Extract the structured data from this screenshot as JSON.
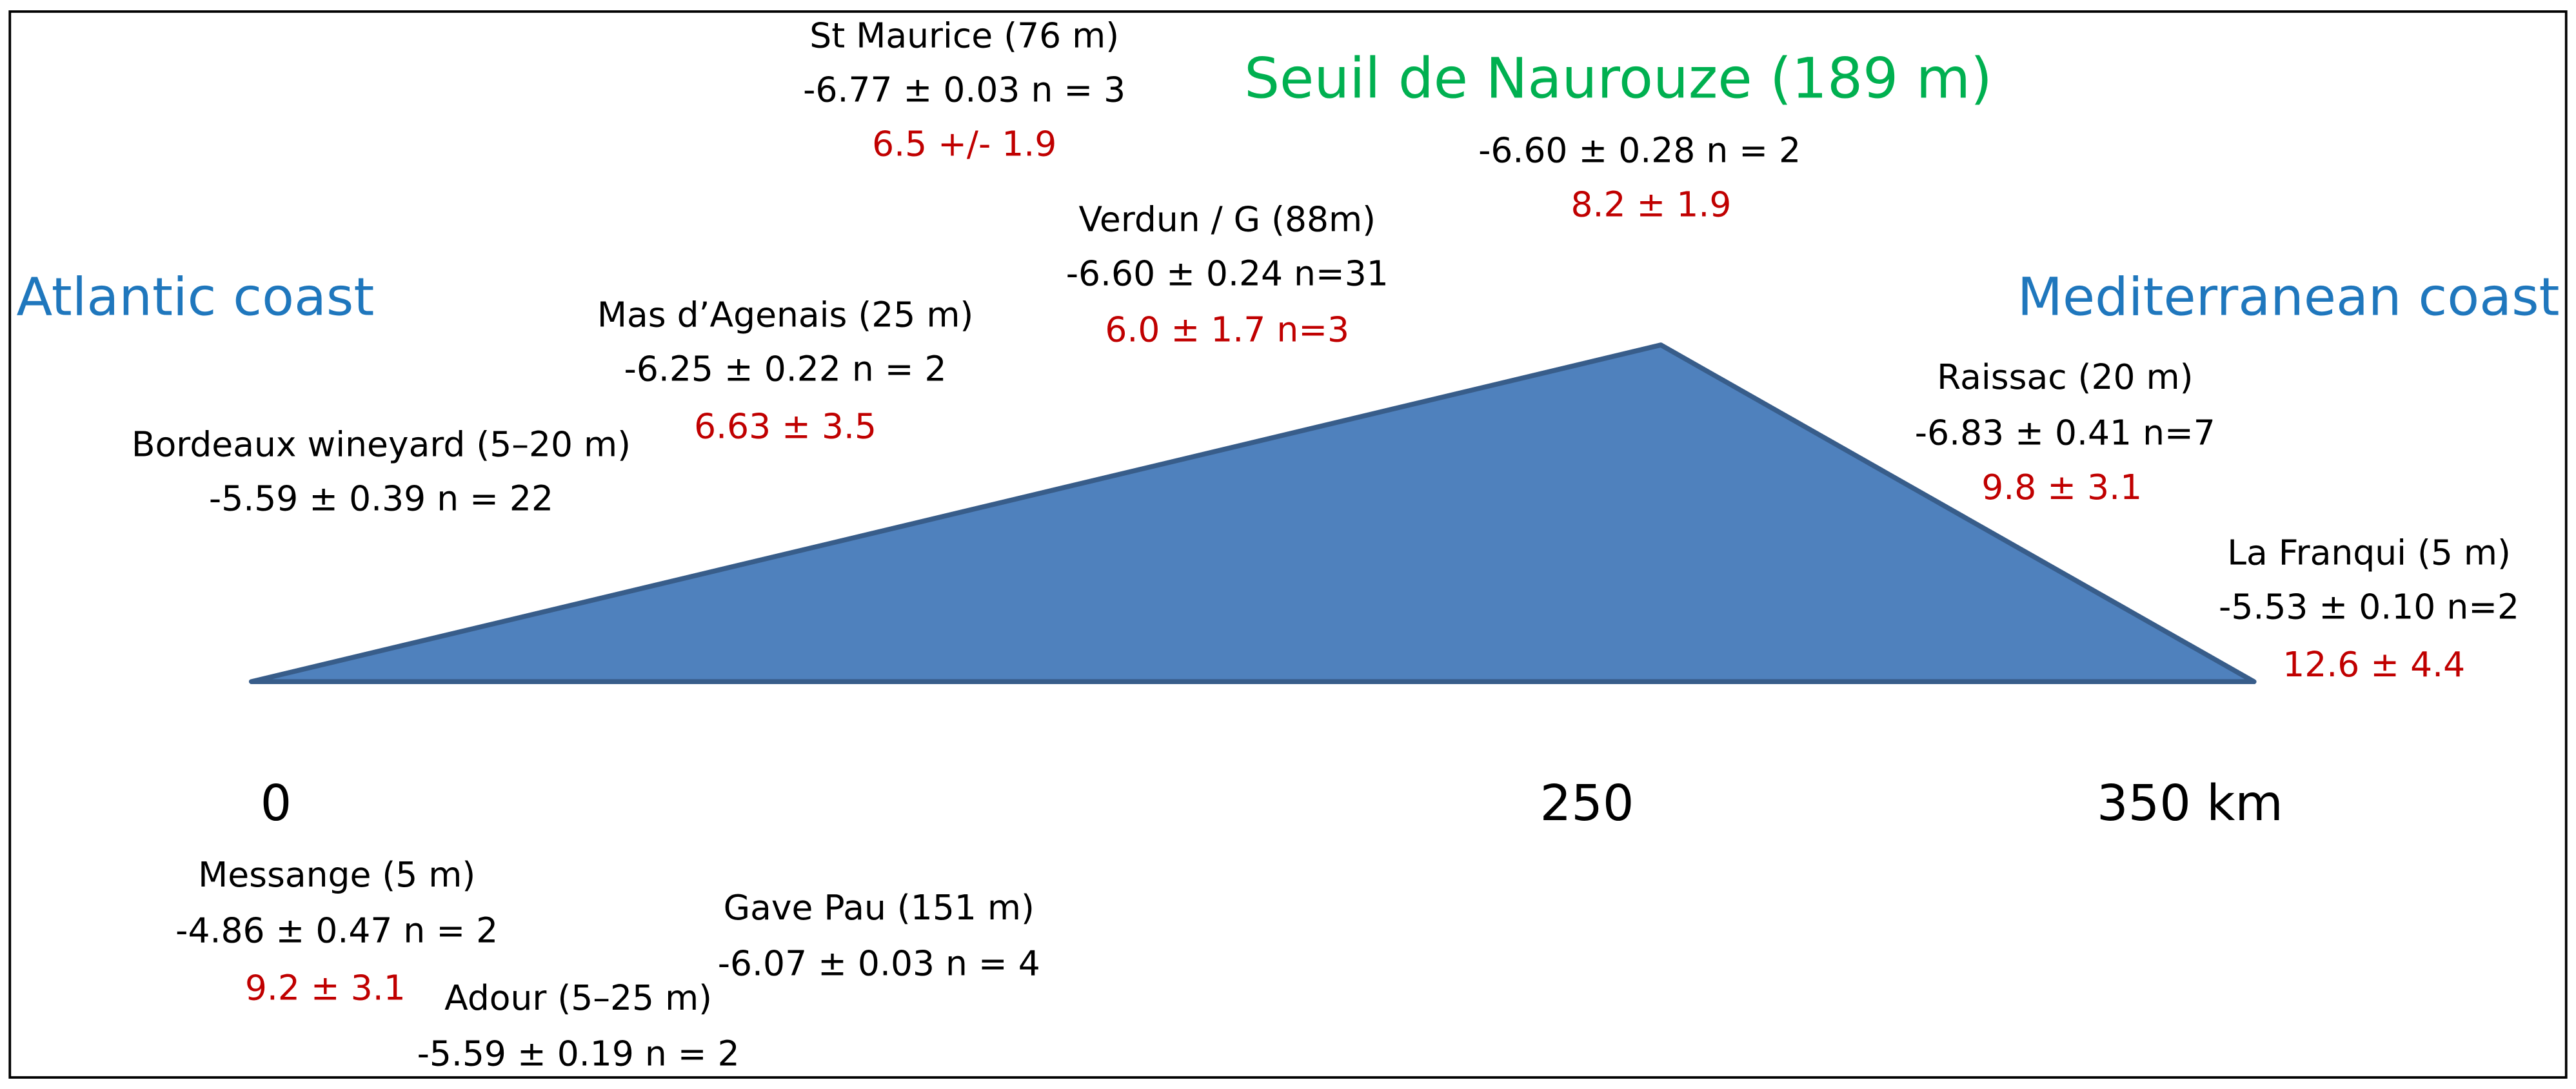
{
  "coasts": {
    "left": "Atlantic coast",
    "right": "Mediterranean coast"
  },
  "summit": {
    "title": "Seuil de Naurouze (189 m)",
    "stats": "-6.60 ± 0.28 n = 2",
    "extra": "8.2 ± 1.9"
  },
  "axis": {
    "labels": [
      "0",
      "250",
      "350 km"
    ]
  },
  "sites": [
    {
      "name": "St Maurice (76 m)",
      "stats": "-6.77 ± 0.03 n = 3",
      "extra": "6.5 +/- 1.9"
    },
    {
      "name": "Verdun / G (88m)",
      "stats": "-6.60 ± 0.24 n=31",
      "extra": "6.0 ± 1.7 n=3"
    },
    {
      "name": "Mas d’Agenais (25 m)",
      "stats": "-6.25 ± 0.22 n = 2",
      "extra": "6.63 ± 3.5"
    },
    {
      "name": "Bordeaux wineyard (5–20 m)",
      "stats": "-5.59 ± 0.39 n = 22"
    },
    {
      "name": "Raissac (20 m)",
      "stats": "-6.83 ± 0.41 n=7",
      "extra": "9.8 ± 3.1"
    },
    {
      "name": "La Franqui (5 m)",
      "stats": "-5.53 ± 0.10 n=2",
      "extra": "12.6 ± 4.4"
    },
    {
      "name": "Messange (5 m)",
      "stats": "-4.86 ± 0.47 n = 2",
      "extra": "9.2 ± 3.1"
    },
    {
      "name": "Gave Pau (151 m)",
      "stats": "-6.07 ± 0.03 n = 4"
    },
    {
      "name": "Adour (5–25 m)",
      "stats": "-5.59 ± 0.19 n = 2"
    }
  ]
}
